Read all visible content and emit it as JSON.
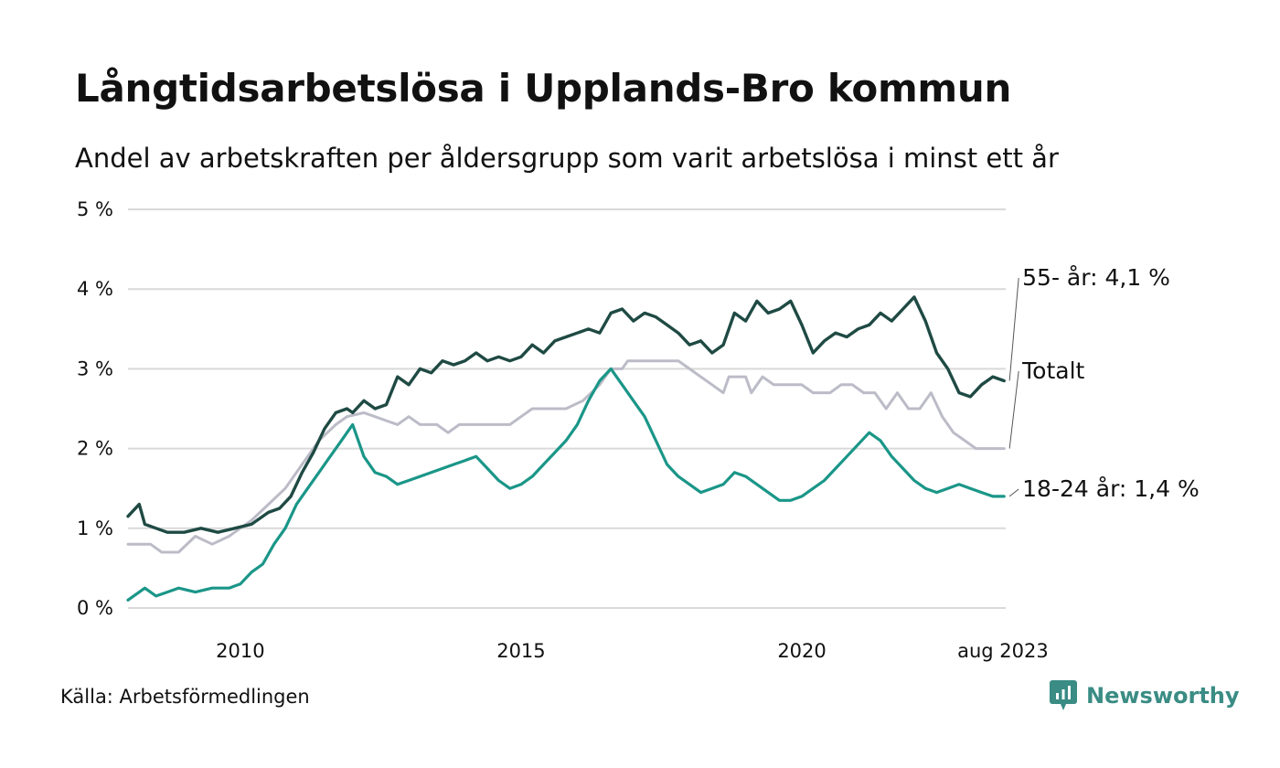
{
  "title": "Långtidsarbetslösa i Upplands-Bro kommun",
  "subtitle": "Andel av arbetskraften per åldersgrupp som varit arbetslösa i minst ett år",
  "source": "Källa: Arbetsförmedlingen",
  "brand": "Newsworthy",
  "colors": {
    "older": "#1f4a44",
    "total": "#bcbcc8",
    "young": "#1a9688",
    "grid": "#d9d9d9",
    "brand": "#3a8c84"
  },
  "chart_data": {
    "type": "line",
    "ylim": [
      0,
      5
    ],
    "yticks": [
      0,
      1,
      2,
      3,
      4,
      5
    ],
    "ytick_labels": [
      "0 %",
      "1 %",
      "2 %",
      "3 %",
      "4 %",
      "5 %"
    ],
    "xlim": [
      2008.0,
      2023.63
    ],
    "xticks": [
      2010,
      2015,
      2020,
      2023.58
    ],
    "xtick_labels": [
      "2010",
      "2015",
      "2020",
      "aug 2023"
    ],
    "grid": true,
    "series": [
      {
        "key": "total",
        "label": "Totalt",
        "points": [
          [
            2008.0,
            0.8
          ],
          [
            2008.4,
            0.8
          ],
          [
            2008.6,
            0.7
          ],
          [
            2008.9,
            0.7
          ],
          [
            2009.2,
            0.9
          ],
          [
            2009.5,
            0.8
          ],
          [
            2009.8,
            0.9
          ],
          [
            2010.0,
            1.0
          ],
          [
            2010.2,
            1.1
          ],
          [
            2010.5,
            1.3
          ],
          [
            2010.8,
            1.5
          ],
          [
            2011.1,
            1.8
          ],
          [
            2011.4,
            2.1
          ],
          [
            2011.7,
            2.3
          ],
          [
            2011.9,
            2.4
          ],
          [
            2012.2,
            2.45
          ],
          [
            2012.4,
            2.4
          ],
          [
            2012.6,
            2.35
          ],
          [
            2012.8,
            2.3
          ],
          [
            2013.0,
            2.4
          ],
          [
            2013.2,
            2.3
          ],
          [
            2013.5,
            2.3
          ],
          [
            2013.7,
            2.2
          ],
          [
            2013.9,
            2.3
          ],
          [
            2014.2,
            2.3
          ],
          [
            2014.5,
            2.3
          ],
          [
            2014.8,
            2.3
          ],
          [
            2015.0,
            2.4
          ],
          [
            2015.2,
            2.5
          ],
          [
            2015.5,
            2.5
          ],
          [
            2015.8,
            2.5
          ],
          [
            2016.1,
            2.6
          ],
          [
            2016.4,
            2.8
          ],
          [
            2016.6,
            3.0
          ],
          [
            2016.8,
            3.0
          ],
          [
            2016.9,
            3.1
          ],
          [
            2017.2,
            3.1
          ],
          [
            2017.5,
            3.1
          ],
          [
            2017.8,
            3.1
          ],
          [
            2018.0,
            3.0
          ],
          [
            2018.2,
            2.9
          ],
          [
            2018.4,
            2.8
          ],
          [
            2018.6,
            2.7
          ],
          [
            2018.7,
            2.9
          ],
          [
            2019.0,
            2.9
          ],
          [
            2019.1,
            2.7
          ],
          [
            2019.3,
            2.9
          ],
          [
            2019.5,
            2.8
          ],
          [
            2019.8,
            2.8
          ],
          [
            2020.0,
            2.8
          ],
          [
            2020.2,
            2.7
          ],
          [
            2020.5,
            2.7
          ],
          [
            2020.7,
            2.8
          ],
          [
            2020.9,
            2.8
          ],
          [
            2021.1,
            2.7
          ],
          [
            2021.3,
            2.7
          ],
          [
            2021.5,
            2.5
          ],
          [
            2021.7,
            2.7
          ],
          [
            2021.9,
            2.5
          ],
          [
            2022.1,
            2.5
          ],
          [
            2022.3,
            2.7
          ],
          [
            2022.5,
            2.4
          ],
          [
            2022.7,
            2.2
          ],
          [
            2022.9,
            2.1
          ],
          [
            2023.1,
            2.0
          ],
          [
            2023.3,
            2.0
          ],
          [
            2023.5,
            2.0
          ],
          [
            2023.6,
            2.0
          ]
        ]
      },
      {
        "key": "older",
        "label": "55- år: 4,1 %",
        "points": []
      },
      {
        "key": "young",
        "label": "18-24 år: 1,4 %",
        "points": []
      }
    ]
  }
}
